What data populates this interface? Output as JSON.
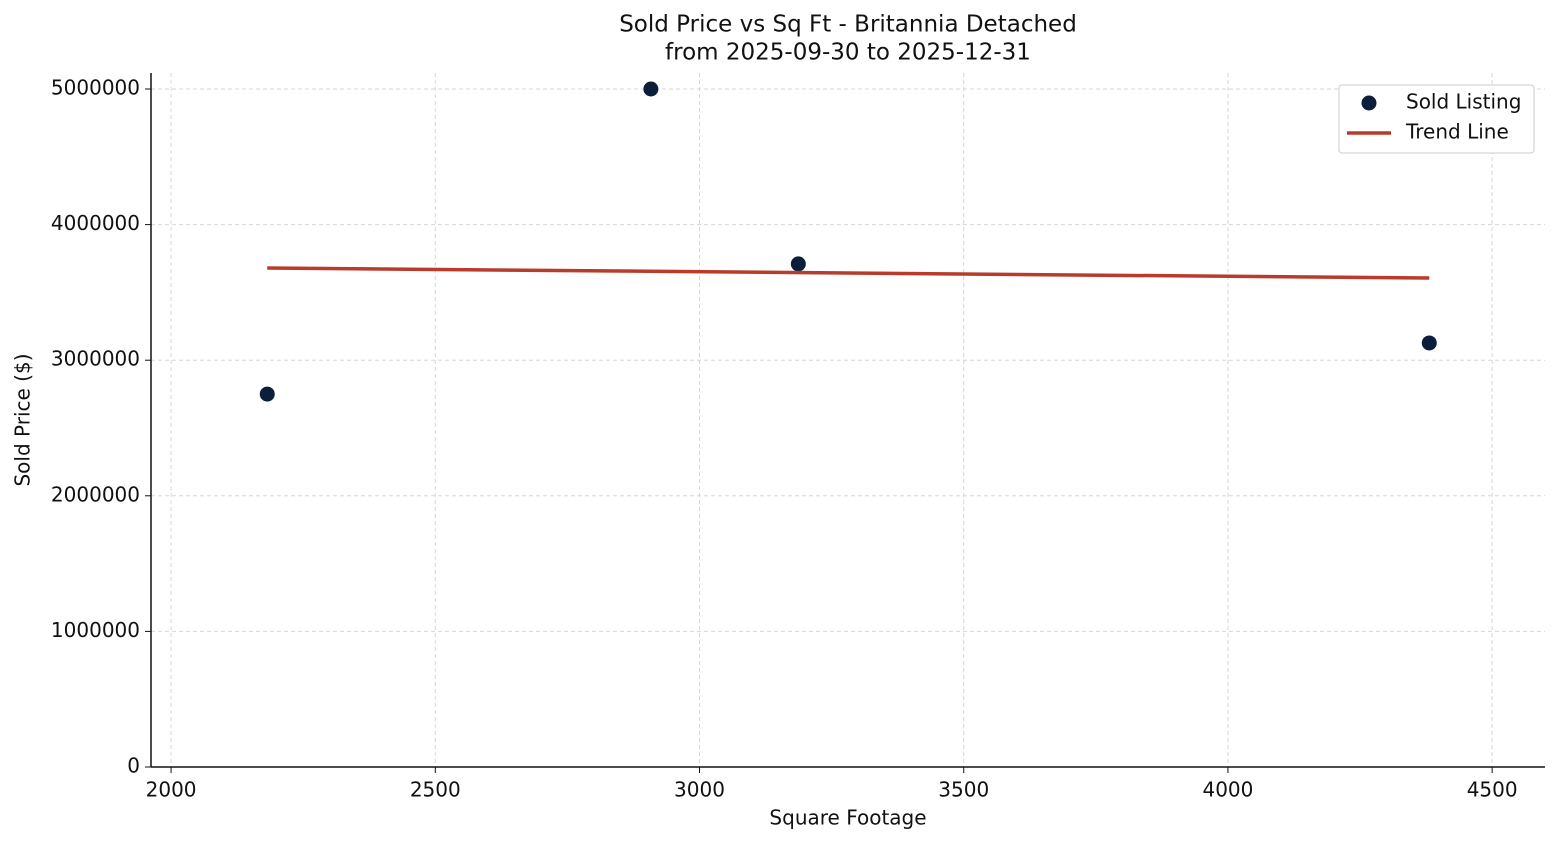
{
  "chart_data": {
    "type": "scatter",
    "title": "Sold Price vs Sq Ft - Britannia Detached",
    "subtitle": "from 2025-09-30 to 2025-12-31",
    "x_label": "Square Footage",
    "y_label": "Sold Price ($)",
    "xlim": [
      1962,
      4600
    ],
    "xticks": [
      2000,
      2500,
      3000,
      3500,
      4000,
      4500
    ],
    "ylim": [
      0,
      5118000
    ],
    "yticks": [
      0,
      1000000,
      2000000,
      3000000,
      4000000,
      5000000
    ],
    "grid": true,
    "legend": "upper right",
    "series": [
      {
        "name": "Sold Listing",
        "type": "scatter",
        "color": "#0b1f3a",
        "x": [
          2182,
          2908,
          3187,
          4381
        ],
        "values": [
          2750000,
          5000000,
          3710000,
          3127000
        ]
      },
      {
        "name": "Trend Line",
        "type": "line",
        "color": "#b83b2c",
        "x": [
          2182,
          4381
        ],
        "values": [
          3680000,
          3606000
        ]
      }
    ]
  }
}
